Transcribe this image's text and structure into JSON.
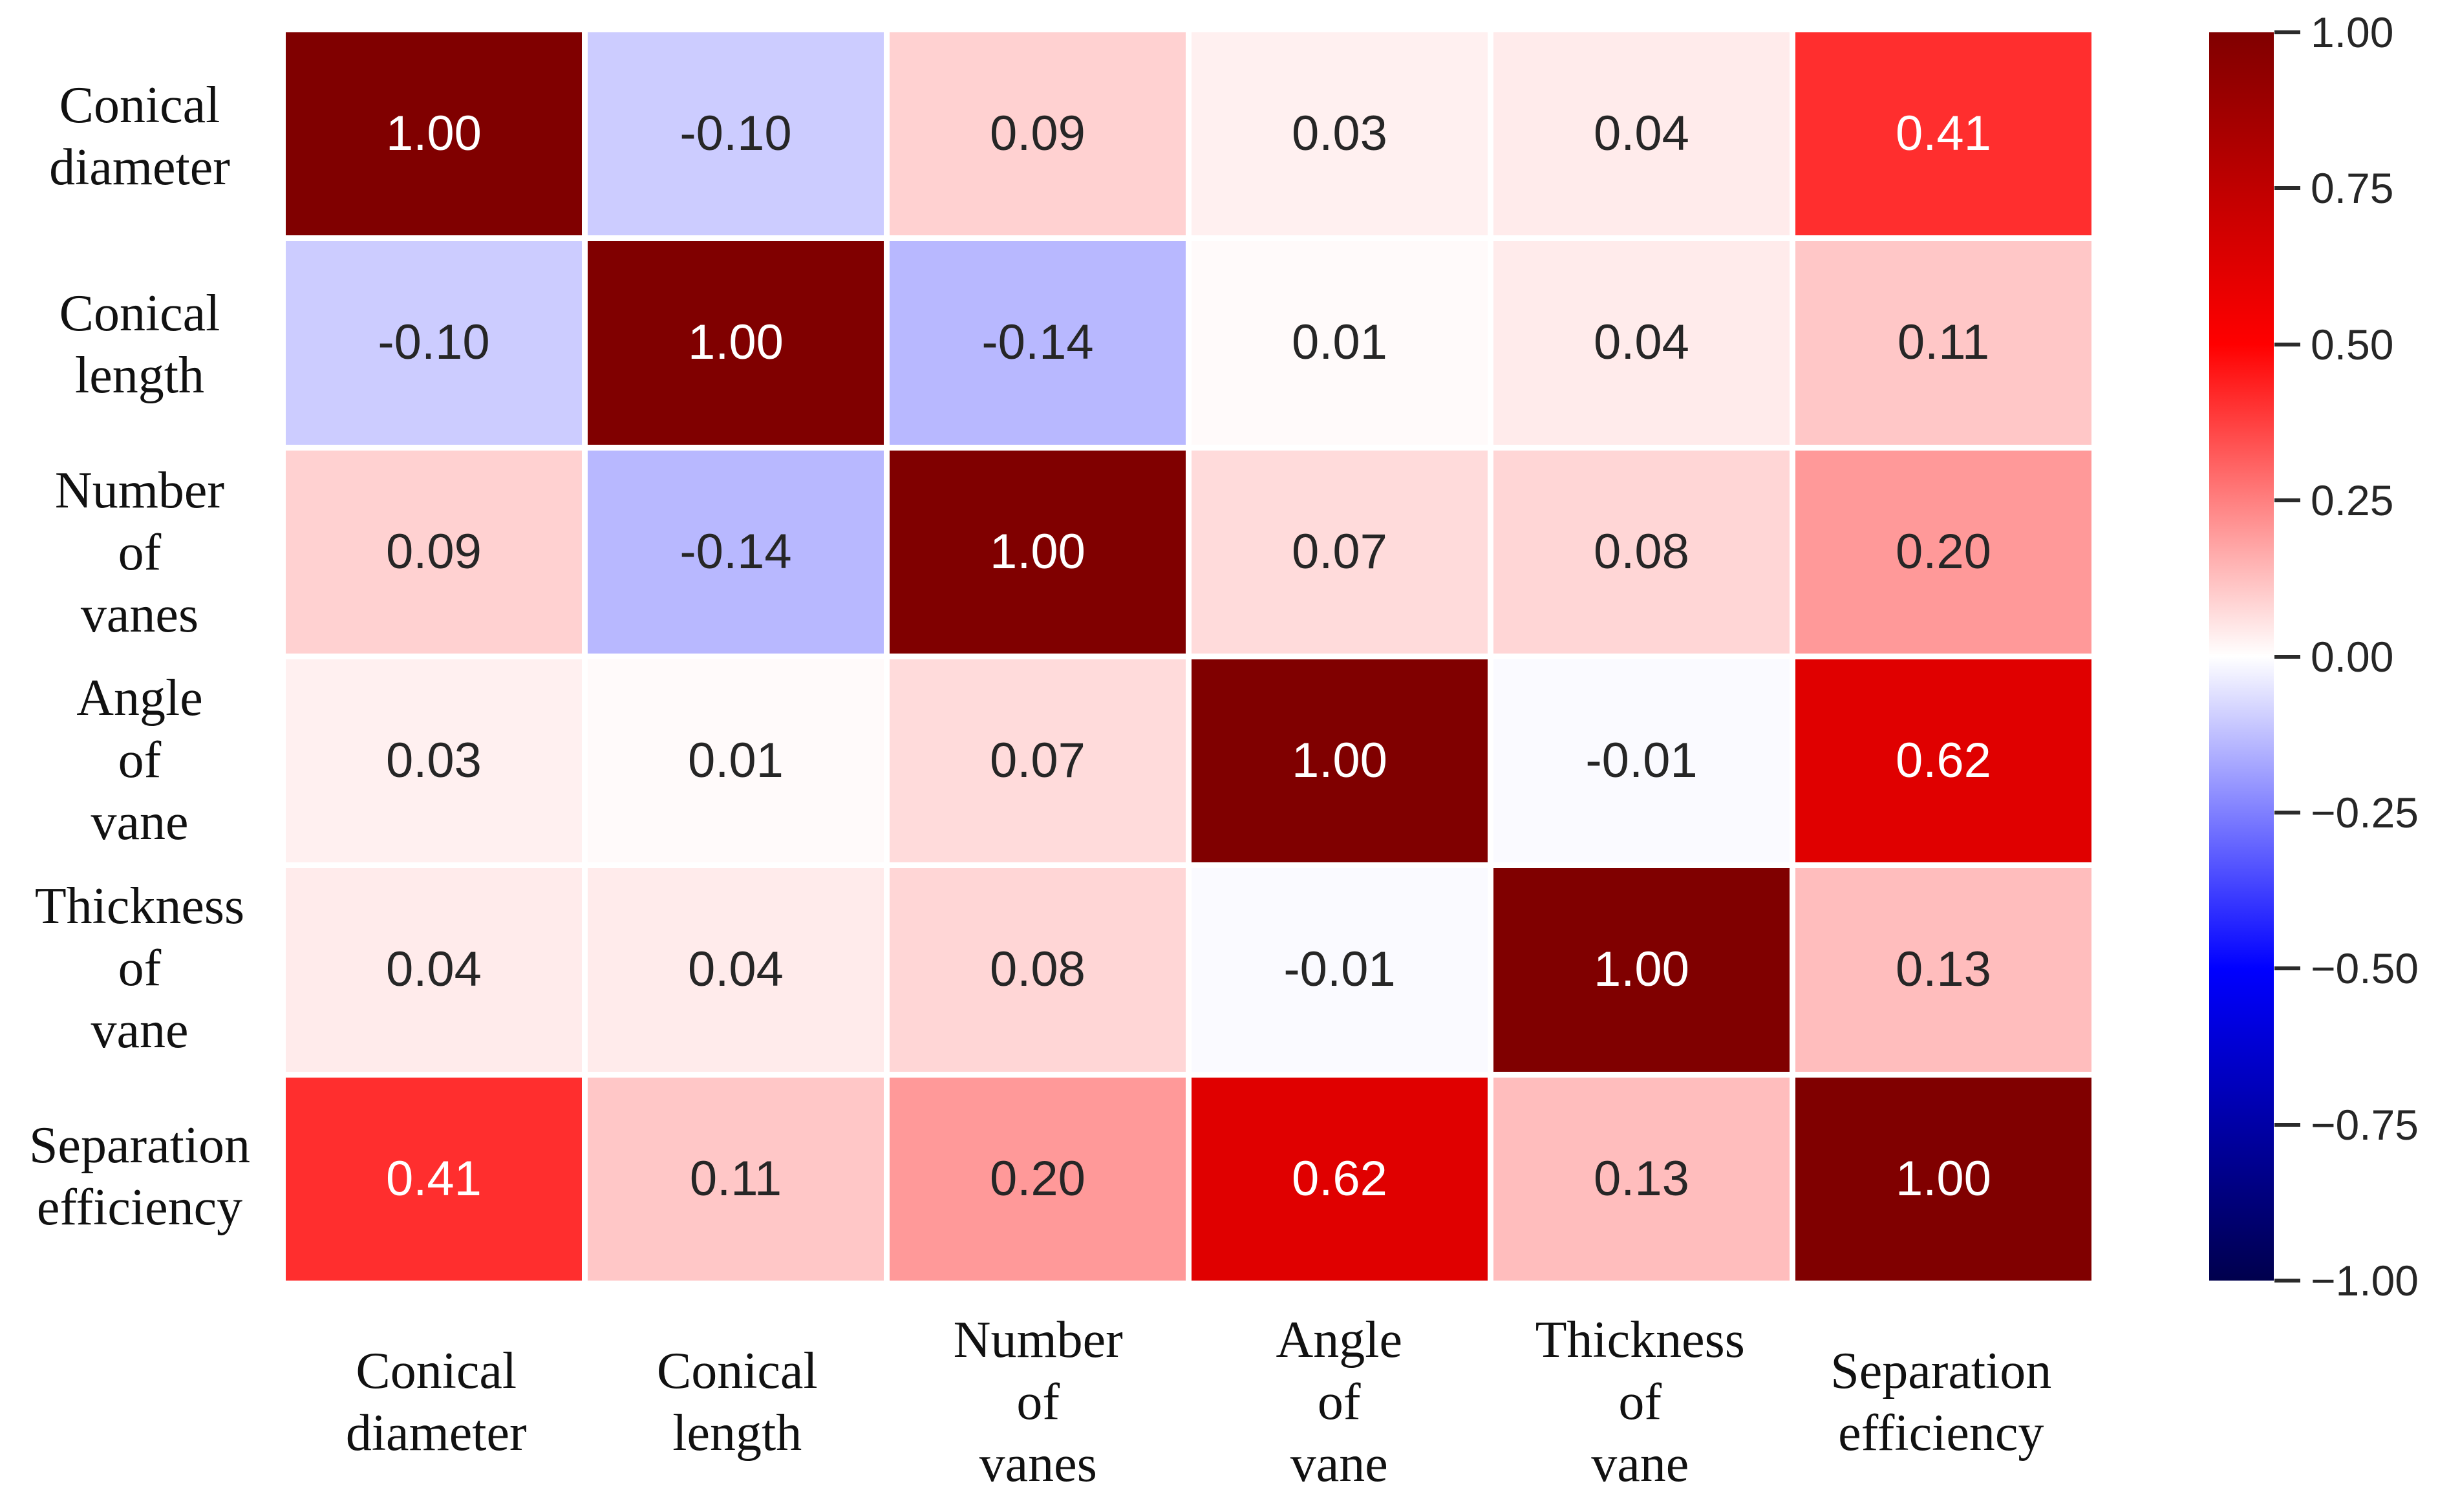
{
  "figure": {
    "kind": "correlation-matrix-heatmap",
    "background": "#ffffff"
  },
  "chart_data": {
    "type": "heatmap",
    "title": "",
    "variables": [
      "Conical diameter",
      "Conical length",
      "Number of vanes",
      "Angle of vane",
      "Thickness of vane",
      "Separation efficiency"
    ],
    "variable_lines": [
      [
        "Conical",
        "diameter"
      ],
      [
        "Conical",
        "length"
      ],
      [
        "Number",
        "of",
        "vanes"
      ],
      [
        "Angle",
        "of",
        "vane"
      ],
      [
        "Thickness",
        "of",
        "vane"
      ],
      [
        "Separation",
        "efficiency"
      ]
    ],
    "matrix": [
      [
        1.0,
        -0.1,
        0.09,
        0.03,
        0.04,
        0.41
      ],
      [
        -0.1,
        1.0,
        -0.14,
        0.01,
        0.04,
        0.11
      ],
      [
        0.09,
        -0.14,
        1.0,
        0.07,
        0.08,
        0.2
      ],
      [
        0.03,
        0.01,
        0.07,
        1.0,
        -0.01,
        0.62
      ],
      [
        0.04,
        0.04,
        0.08,
        -0.01,
        1.0,
        0.13
      ],
      [
        0.41,
        0.11,
        0.2,
        0.62,
        0.13,
        1.0
      ]
    ],
    "annotation_decimals": 2,
    "colormap": "seismic",
    "vmin": -1.0,
    "vmax": 1.0,
    "legend_position": "right-colorbar",
    "colorbar": {
      "tick_labels": [
        "1.00",
        "0.75",
        "0.50",
        "0.25",
        "0.00",
        "−0.25",
        "−0.50",
        "−0.75",
        "−1.00"
      ],
      "tick_values": [
        1.0,
        0.75,
        0.5,
        0.25,
        0.0,
        -0.25,
        -0.5,
        -0.75,
        -1.0
      ]
    },
    "grid": "white-cell-gaps"
  },
  "colors": {
    "background": "#ffffff",
    "annotation_dark": "#262626",
    "annotation_light": "#ffffff",
    "axis_label": "#111111",
    "colorbar_tick_mark": "#2b2b2b",
    "colorbar_tick_label": "#262626",
    "colorbar_gradient": [
      "#800000",
      "#FF0000",
      "#FFFFFF",
      "#0000FF",
      "#00004D"
    ]
  }
}
